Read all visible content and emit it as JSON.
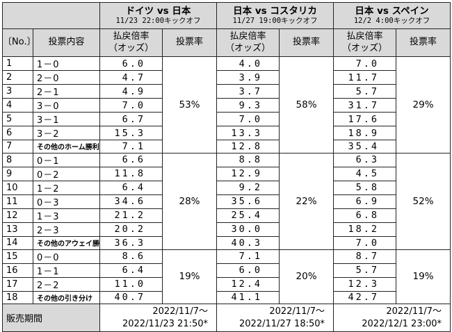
{
  "matches": [
    {
      "title": "ドイツ vs 日本",
      "kickoff": "11/23 22:00キックオフ",
      "period_start": "2022/11/7～",
      "period_end": "2022/11/23 21:50*",
      "rates": [
        "53%",
        "28%",
        "19%"
      ]
    },
    {
      "title": "日本 vs コスタリカ",
      "kickoff": "11/27 19:00キックオフ",
      "period_start": "2022/11/7～",
      "period_end": "2022/11/27 18:50*",
      "rates": [
        "58%",
        "22%",
        "20%"
      ]
    },
    {
      "title": "日本 vs スペイン",
      "kickoff": "12/2 4:00キックオフ",
      "period_start": "2022/11/7～",
      "period_end": "2022/12/1 23:00*",
      "rates": [
        "29%",
        "52%",
        "19%"
      ]
    }
  ],
  "headers": {
    "no": "〔No.〕",
    "content": "投票内容",
    "odds_line1": "払戻倍率",
    "odds_line2": "（オッズ）",
    "rate": "投票率",
    "period": "販売期間"
  },
  "rows": [
    {
      "no": "1",
      "label": "1－0",
      "odds": [
        "6.0",
        "4.0",
        "7.0"
      ]
    },
    {
      "no": "2",
      "label": "2－0",
      "odds": [
        "4.7",
        "3.9",
        "11.7"
      ]
    },
    {
      "no": "3",
      "label": "2－1",
      "odds": [
        "4.9",
        "3.7",
        "5.7"
      ]
    },
    {
      "no": "4",
      "label": "3－0",
      "odds": [
        "7.0",
        "9.3",
        "31.7"
      ]
    },
    {
      "no": "5",
      "label": "3－1",
      "odds": [
        "6.7",
        "7.0",
        "17.6"
      ]
    },
    {
      "no": "6",
      "label": "3－2",
      "odds": [
        "15.3",
        "13.3",
        "18.9"
      ]
    },
    {
      "no": "7",
      "label": "その他のホーム勝利",
      "odds": [
        "7.1",
        "12.8",
        "35.4"
      ]
    },
    {
      "no": "8",
      "label": "0－1",
      "odds": [
        "6.6",
        "8.8",
        "6.3"
      ]
    },
    {
      "no": "9",
      "label": "0－2",
      "odds": [
        "11.8",
        "12.9",
        "4.5"
      ]
    },
    {
      "no": "10",
      "label": "1－2",
      "odds": [
        "6.4",
        "9.2",
        "5.8"
      ]
    },
    {
      "no": "11",
      "label": "0－3",
      "odds": [
        "34.6",
        "35.6",
        "6.9"
      ]
    },
    {
      "no": "12",
      "label": "1－3",
      "odds": [
        "21.2",
        "25.4",
        "6.8"
      ]
    },
    {
      "no": "13",
      "label": "2－3",
      "odds": [
        "20.2",
        "30.0",
        "18.2"
      ]
    },
    {
      "no": "14",
      "label": "その他のアウェイ勝利",
      "odds": [
        "36.3",
        "40.3",
        "7.0"
      ]
    },
    {
      "no": "15",
      "label": "0－0",
      "odds": [
        "8.6",
        "7.1",
        "8.7"
      ]
    },
    {
      "no": "16",
      "label": "1－1",
      "odds": [
        "6.4",
        "6.0",
        "5.7"
      ]
    },
    {
      "no": "17",
      "label": "2－2",
      "odds": [
        "11.0",
        "12.4",
        "12.3"
      ]
    },
    {
      "no": "18",
      "label": "その他の引き分け",
      "odds": [
        "40.7",
        "41.1",
        "42.7"
      ]
    }
  ]
}
